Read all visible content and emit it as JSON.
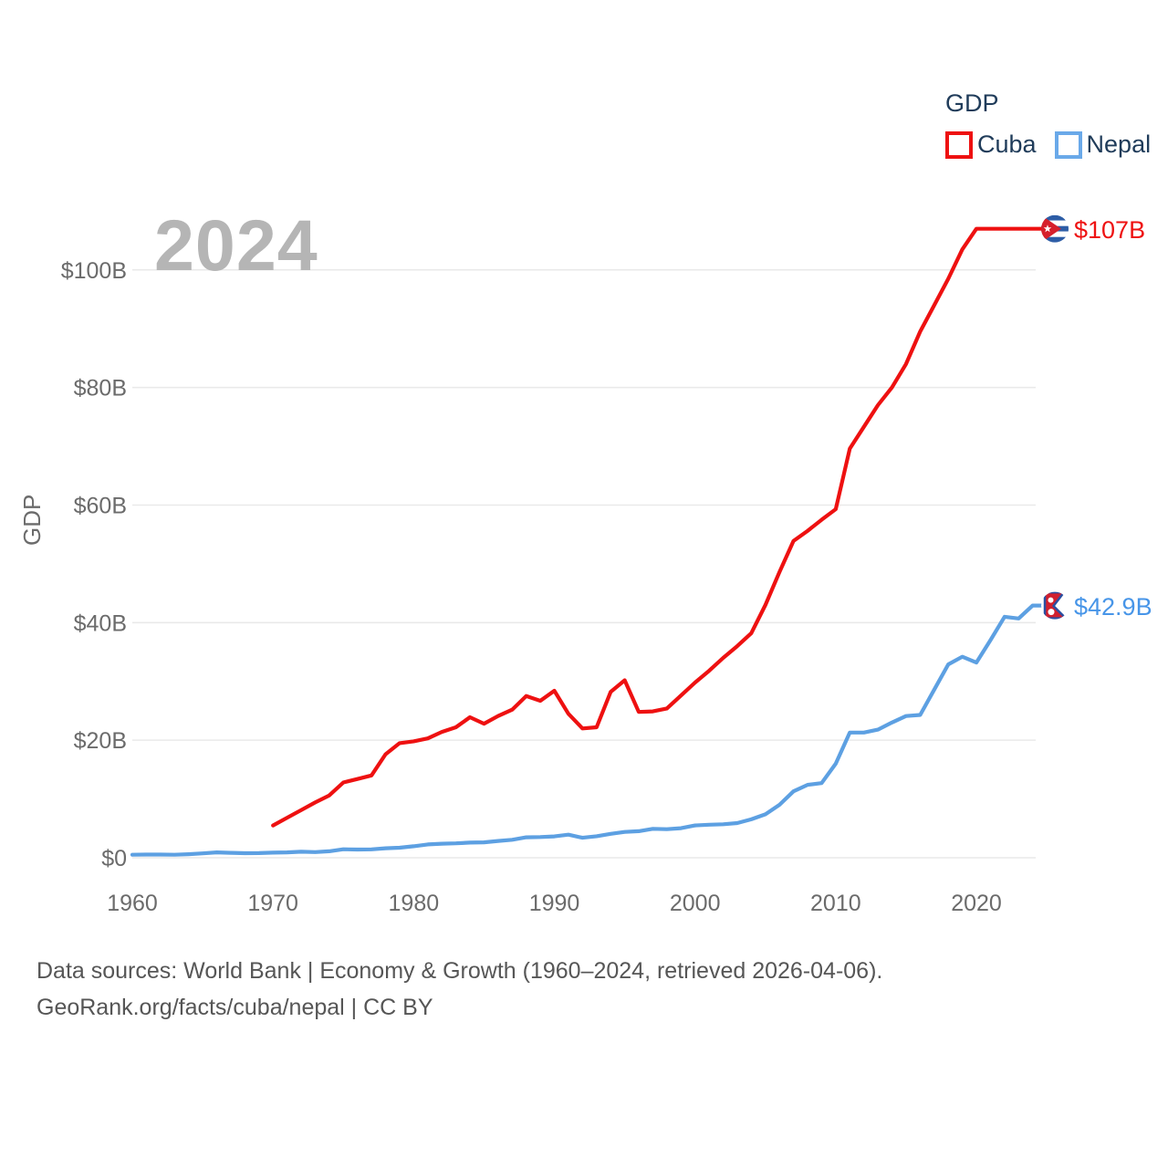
{
  "watermark": "2024",
  "legend": {
    "title": "GDP",
    "items": [
      {
        "label": "Cuba",
        "color": "#ee1111"
      },
      {
        "label": "Nepal",
        "color": "#6aa9e9"
      }
    ]
  },
  "axes": {
    "ylabel": "GDP",
    "x_ticks": [
      "1960",
      "1970",
      "1980",
      "1990",
      "2000",
      "2010",
      "2020"
    ],
    "y_ticks": [
      {
        "label": "$0",
        "value": 0
      },
      {
        "label": "$20B",
        "value": 20
      },
      {
        "label": "$40B",
        "value": 40
      },
      {
        "label": "$60B",
        "value": 60
      },
      {
        "label": "$80B",
        "value": 80
      },
      {
        "label": "$100B",
        "value": 100
      }
    ]
  },
  "chart_data": {
    "type": "line",
    "title": "GDP",
    "x_range": [
      1960,
      2024
    ],
    "ylim": [
      0,
      110
    ],
    "grid": true,
    "legend_position": "top-right",
    "series": [
      {
        "name": "Cuba",
        "color": "#ee1111",
        "label_color": "#ee1111",
        "end_label": "$107B",
        "end_value_year": 2024,
        "start_year": 1970,
        "values": [
          5.5,
          6.8,
          8.1,
          9.4,
          10.6,
          12.8,
          13.4,
          14.0,
          17.6,
          19.5,
          19.8,
          20.3,
          21.4,
          22.2,
          23.9,
          22.8,
          24.1,
          25.2,
          27.5,
          26.7,
          28.4,
          24.5,
          22.0,
          22.2,
          28.2,
          30.2,
          24.8,
          24.9,
          25.4,
          27.6,
          29.8,
          31.8,
          34.0,
          36.0,
          38.2,
          43.0,
          48.6,
          53.9,
          55.6,
          57.5,
          59.3,
          69.6,
          73.3,
          77.0,
          80.0,
          84.0,
          89.5,
          94.0,
          98.5,
          103.5,
          107.0,
          107.0,
          107.0,
          107.0,
          107.0
        ]
      },
      {
        "name": "Nepal",
        "color": "#5da0e2",
        "label_color": "#4795e8",
        "end_label": "$42.9B",
        "end_value_year": 2024,
        "start_year": 1960,
        "values": [
          0.51,
          0.55,
          0.55,
          0.52,
          0.6,
          0.74,
          0.91,
          0.84,
          0.77,
          0.79,
          0.87,
          0.92,
          1.02,
          0.97,
          1.1,
          1.45,
          1.39,
          1.43,
          1.61,
          1.7,
          1.95,
          2.27,
          2.39,
          2.45,
          2.58,
          2.62,
          2.85,
          3.06,
          3.48,
          3.52,
          3.63,
          3.92,
          3.4,
          3.66,
          4.07,
          4.4,
          4.52,
          4.92,
          4.86,
          5.03,
          5.49,
          5.62,
          5.7,
          5.9,
          6.54,
          7.39,
          9.0,
          11.3,
          12.4,
          12.7,
          16.0,
          21.3,
          21.3,
          21.8,
          23.0,
          24.1,
          24.3,
          28.6,
          32.9,
          34.2,
          33.2,
          37.0,
          41.0,
          40.7,
          42.9
        ]
      }
    ]
  },
  "footer": {
    "line1": "Data sources: World Bank | Economy & Growth (1960–2024, retrieved 2026-04-06).",
    "line2": "GeoRank.org/facts/cuba/nepal | CC BY"
  }
}
